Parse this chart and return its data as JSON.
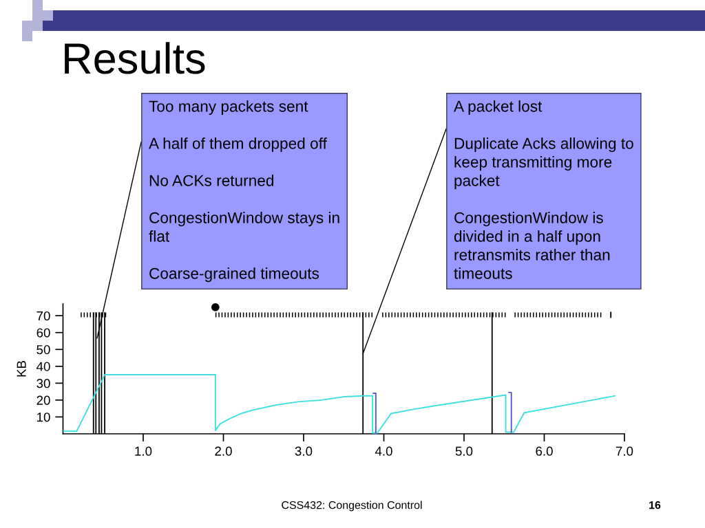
{
  "chart_data": {
    "type": "line",
    "title": "Results",
    "ylabel": "KB",
    "xlim": [
      0,
      7
    ],
    "xticks": [
      {
        "value": 1,
        "label": "1.0"
      },
      {
        "value": 2,
        "label": "2.0"
      },
      {
        "value": 3,
        "label": "3.0"
      },
      {
        "value": 4,
        "label": "4.0"
      },
      {
        "value": 5,
        "label": "5.0"
      },
      {
        "value": 6,
        "label": "6.0"
      },
      {
        "value": 7,
        "label": "7.0"
      }
    ],
    "ylim": [
      0,
      77
    ],
    "yticks": [
      10,
      20,
      30,
      40,
      50,
      60,
      70
    ],
    "series": [
      {
        "color": "#40e0e0",
        "x": [
          0.01,
          0.17,
          0.52,
          1.9,
          1.9,
          1.96,
          2.08,
          2.22,
          2.36,
          2.65,
          2.93,
          3.22,
          3.51,
          3.74,
          3.86,
          3.86,
          3.92,
          4.09,
          4.37,
          4.62,
          5.52,
          5.52,
          5.62,
          5.75,
          6.88
        ],
        "values": [
          1.5,
          1.5,
          35,
          35,
          2,
          6,
          9,
          12,
          14,
          17,
          19,
          20,
          22,
          22.5,
          22.5,
          0.5,
          0.5,
          12,
          14.5,
          16.5,
          23,
          1,
          1,
          12.5,
          22.5
        ]
      },
      {
        "color": "#5a5ad2",
        "x": [
          3.87,
          3.9,
          3.9
        ],
        "values": [
          24,
          24,
          0
        ]
      },
      {
        "color": "#5a5ad2",
        "x": [
          5.56,
          5.59,
          5.59
        ],
        "values": [
          24.5,
          24.5,
          1
        ]
      },
      {
        "color": "#000000",
        "line_style": "dotted",
        "x": [
          0.22,
          0.54
        ],
        "values": [
          70.5,
          70.5
        ]
      },
      {
        "color": "#000000",
        "line_style": "dotted",
        "x": [
          1.9,
          3.86
        ],
        "values": [
          70.5,
          70.5
        ]
      },
      {
        "color": "#000000",
        "line_style": "dotted",
        "x": [
          3.98,
          5.53
        ],
        "values": [
          70.5,
          70.5
        ]
      },
      {
        "color": "#000000",
        "line_style": "dotted",
        "x": [
          5.63,
          6.73
        ],
        "values": [
          70.5,
          70.5
        ]
      },
      {
        "color": "#000000",
        "x": [
          6.83,
          6.83
        ],
        "values": [
          69.1,
          71.9
        ]
      },
      {
        "type": "scatter",
        "color": "#000000",
        "marker": "circle",
        "x": [
          1.9
        ],
        "values": [
          75
        ]
      }
    ],
    "ref_lines": [
      {
        "axis": "x",
        "value": 0.38,
        "color": "#000000"
      },
      {
        "axis": "x",
        "value": 0.41,
        "color": "#000000"
      },
      {
        "axis": "x",
        "value": 0.45,
        "color": "#000000"
      },
      {
        "axis": "x",
        "value": 0.48,
        "color": "#000000"
      },
      {
        "axis": "x",
        "value": 0.52,
        "color": "#000000"
      },
      {
        "axis": "x",
        "value": 3.74,
        "color": "#000000"
      },
      {
        "axis": "x",
        "value": 5.35,
        "color": "#000000"
      }
    ],
    "annotations": [
      "Too many packets sent\n\nA half of them dropped off\n\nNo ACKs returned\n\nCongestionWindow stays in\nflat\n\nCoarse-grained timeouts",
      "A packet lost\n\nDuplicate Acks allowing to\nkeep transmitting more\npacket\n\nCongestionWindow is\ndivided in a half upon\nretransmits rather than\ntimeouts",
      "CSS432: Congestion Control",
      "16"
    ]
  }
}
